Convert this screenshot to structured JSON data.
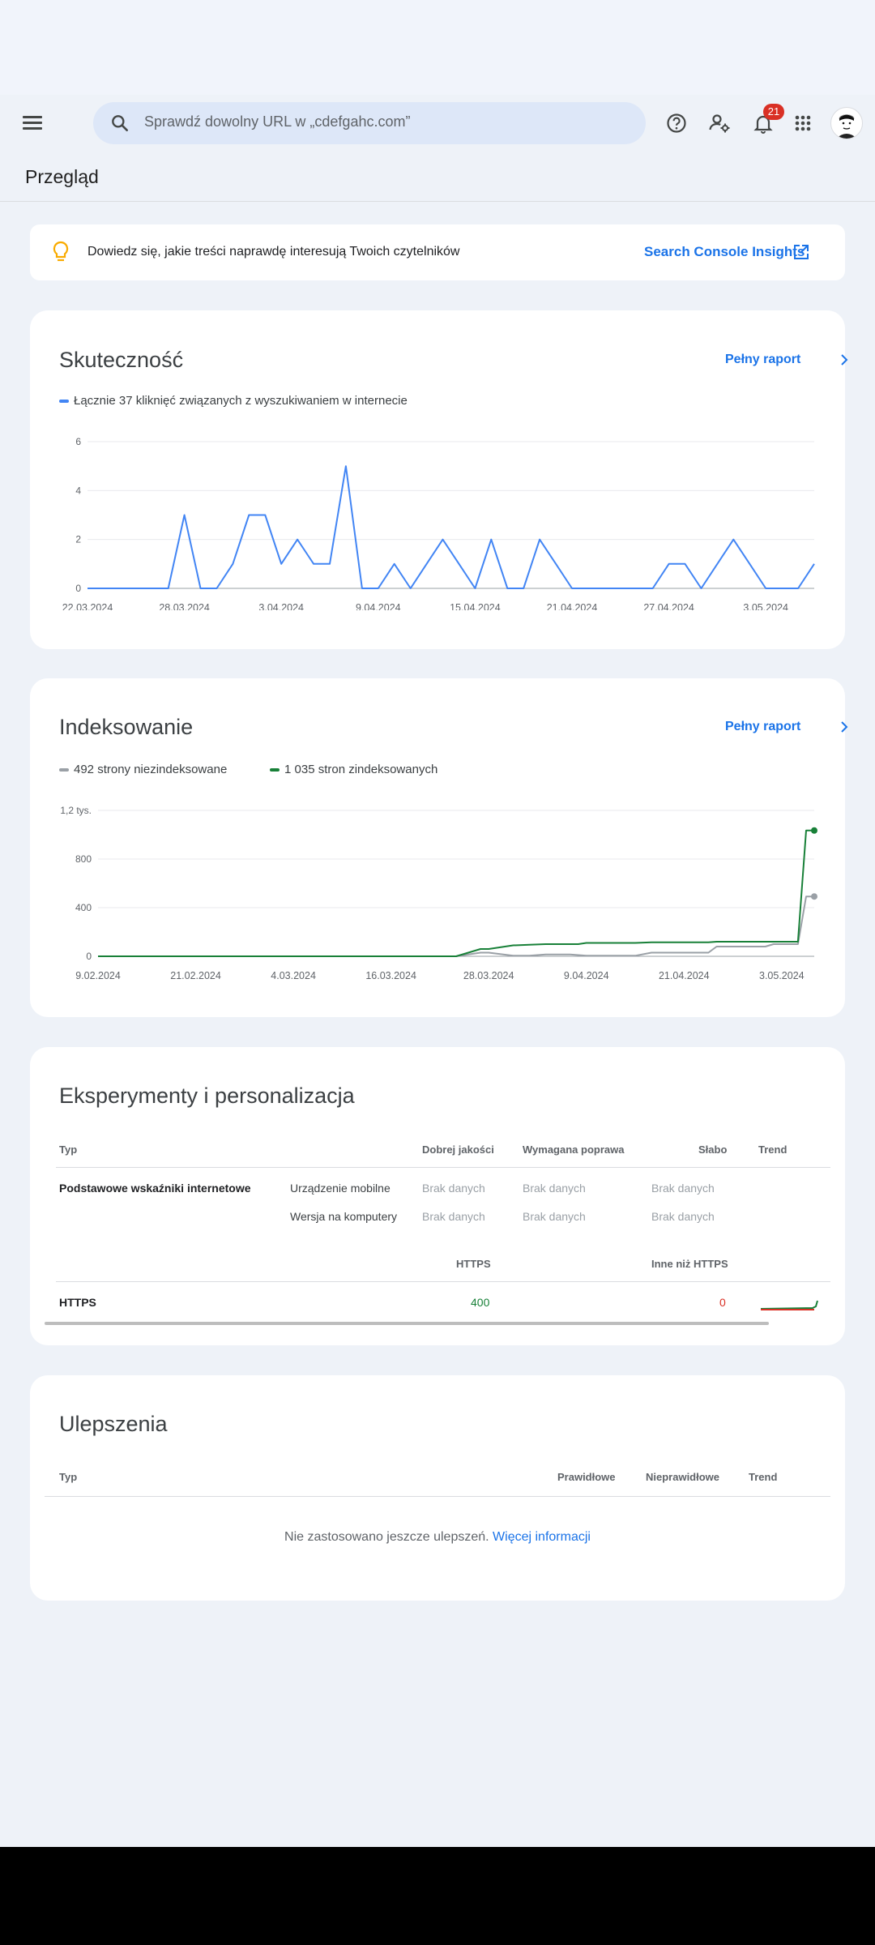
{
  "search": {
    "placeholder": "Sprawdź dowolny URL w „cdefgahc.com”"
  },
  "notifications": {
    "count": "21"
  },
  "page_title": "Przegląd",
  "banner": {
    "text": "Dowiedz się, jakie treści naprawdę interesują Twoich czytelników",
    "link": "Search Console Insights"
  },
  "performance": {
    "title": "Skuteczność",
    "full_report": "Pełny raport",
    "legend": "Łącznie 37 kliknięć związanych z wyszukiwaniem w internecie",
    "color": "#4285f4"
  },
  "indexing": {
    "title": "Indeksowanie",
    "full_report": "Pełny raport",
    "legend_not_indexed": "492 strony niezindeksowane",
    "legend_indexed": "1 035 stron zindeksowanych",
    "color_not_indexed": "#9aa0a6",
    "color_indexed": "#188038"
  },
  "experience": {
    "title": "Eksperymenty i personalizacja",
    "headers": {
      "type": "Typ",
      "good": "Dobrej jakości",
      "needs": "Wymagana poprawa",
      "poor": "Słabo",
      "trend": "Trend"
    },
    "cwv_label": "Podstawowe wskaźniki internetowe",
    "rows": [
      {
        "device": "Urządzenie mobilne",
        "good": "Brak danych",
        "needs": "Brak danych",
        "poor": "Brak danych"
      },
      {
        "device": "Wersja na komputery",
        "good": "Brak danych",
        "needs": "Brak danych",
        "poor": "Brak danych"
      }
    ],
    "https_headers": {
      "https": "HTTPS",
      "non_https": "Inne niż HTTPS"
    },
    "https_row": {
      "label": "HTTPS",
      "https": "400",
      "non_https": "0"
    }
  },
  "enhancements": {
    "title": "Ulepszenia",
    "headers": {
      "type": "Typ",
      "valid": "Prawidłowe",
      "invalid": "Nieprawidłowe",
      "trend": "Trend"
    },
    "empty_text": "Nie zastosowano jeszcze ulepszeń.",
    "more_link": "Więcej informacji"
  },
  "chart_data": [
    {
      "type": "line",
      "title": "Skuteczność",
      "x_ticks": [
        "22.03.2024",
        "28.03.2024",
        "3.04.2024",
        "9.04.2024",
        "15.04.2024",
        "21.04.2024",
        "27.04.2024",
        "3.05.2024"
      ],
      "y_ticks": [
        "0",
        "2",
        "4",
        "6"
      ],
      "ylim": [
        0,
        6
      ],
      "grid": true,
      "series": [
        {
          "name": "Łącznie 37 kliknięć związanych z wyszukiwaniem w internecie",
          "x": [
            "2024-03-22",
            "2024-03-23",
            "2024-03-24",
            "2024-03-25",
            "2024-03-26",
            "2024-03-27",
            "2024-03-28",
            "2024-03-29",
            "2024-03-30",
            "2024-03-31",
            "2024-04-01",
            "2024-04-02",
            "2024-04-03",
            "2024-04-04",
            "2024-04-05",
            "2024-04-06",
            "2024-04-07",
            "2024-04-08",
            "2024-04-09",
            "2024-04-10",
            "2024-04-11",
            "2024-04-12",
            "2024-04-13",
            "2024-04-14",
            "2024-04-15",
            "2024-04-16",
            "2024-04-17",
            "2024-04-18",
            "2024-04-19",
            "2024-04-20",
            "2024-04-21",
            "2024-04-22",
            "2024-04-23",
            "2024-04-24",
            "2024-04-25",
            "2024-04-26",
            "2024-04-27",
            "2024-04-28",
            "2024-04-29",
            "2024-04-30",
            "2024-05-01",
            "2024-05-02",
            "2024-05-03",
            "2024-05-04",
            "2024-05-05",
            "2024-05-06"
          ],
          "values": [
            0,
            0,
            0,
            0,
            0,
            0,
            3,
            0,
            0,
            1,
            3,
            3,
            1,
            2,
            1,
            1,
            5,
            0,
            0,
            1,
            0,
            1,
            2,
            1,
            0,
            2,
            0,
            0,
            2,
            1,
            0,
            0,
            0,
            0,
            0,
            0,
            1,
            1,
            0,
            1,
            2,
            1,
            0,
            0,
            0,
            1
          ]
        }
      ]
    },
    {
      "type": "line",
      "title": "Indeksowanie",
      "x_ticks": [
        "9.02.2024",
        "21.02.2024",
        "4.03.2024",
        "16.03.2024",
        "28.03.2024",
        "9.04.2024",
        "21.04.2024",
        "3.05.2024"
      ],
      "y_ticks": [
        "0",
        "400",
        "800",
        "1,2 tys."
      ],
      "ylim": [
        0,
        1200
      ],
      "grid": true,
      "series": [
        {
          "name": "492 strony niezindeksowane",
          "x": [
            "2024-02-09",
            "2024-03-24",
            "2024-03-27",
            "2024-03-28",
            "2024-03-31",
            "2024-04-02",
            "2024-04-04",
            "2024-04-07",
            "2024-04-09",
            "2024-04-15",
            "2024-04-17",
            "2024-04-24",
            "2024-04-25",
            "2024-05-01",
            "2024-05-02",
            "2024-05-05",
            "2024-05-06",
            "2024-05-07"
          ],
          "values": [
            0,
            0,
            30,
            30,
            5,
            5,
            15,
            15,
            5,
            5,
            30,
            30,
            80,
            80,
            100,
            100,
            492,
            492
          ]
        },
        {
          "name": "1 035 stron zindeksowanych",
          "x": [
            "2024-02-09",
            "2024-03-24",
            "2024-03-27",
            "2024-03-28",
            "2024-03-31",
            "2024-04-02",
            "2024-04-04",
            "2024-04-08",
            "2024-04-09",
            "2024-04-15",
            "2024-04-17",
            "2024-04-24",
            "2024-04-25",
            "2024-05-05",
            "2024-05-06",
            "2024-05-07"
          ],
          "values": [
            0,
            0,
            60,
            60,
            90,
            95,
            100,
            100,
            110,
            110,
            115,
            115,
            120,
            120,
            1035,
            1035
          ]
        }
      ]
    }
  ]
}
